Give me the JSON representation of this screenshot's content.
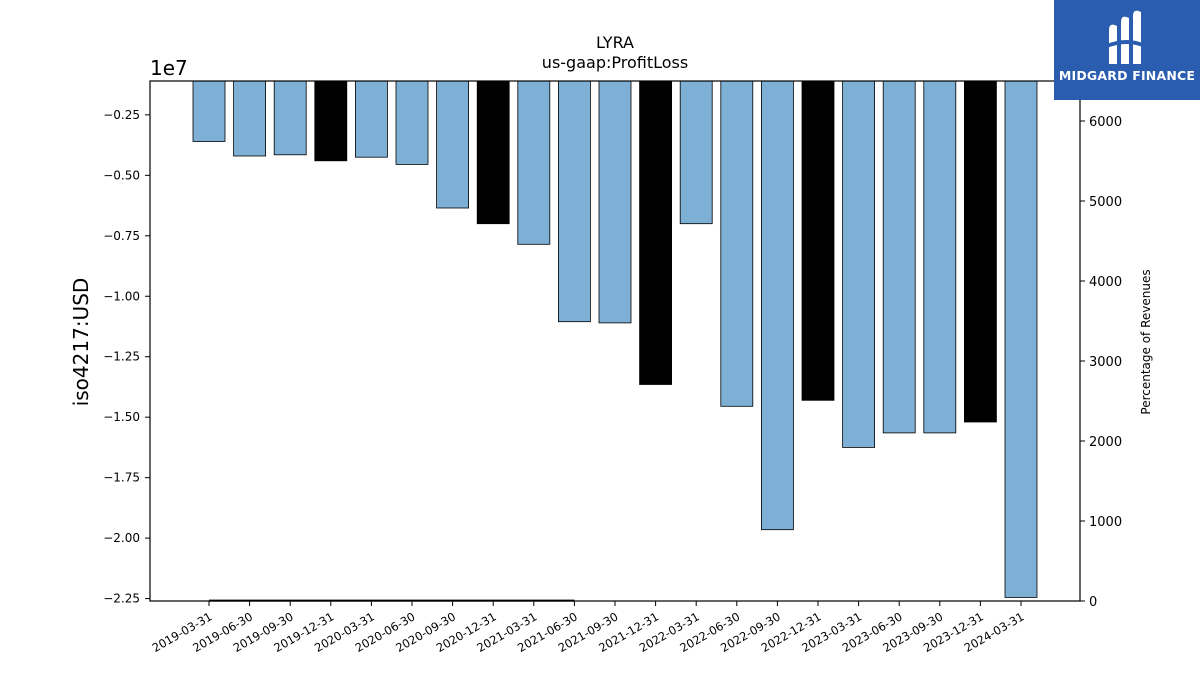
{
  "chart_data": {
    "type": "bar",
    "title": "LYRA",
    "subtitle": "us-gaap:ProfitLoss",
    "ylabel": "iso4217:USD",
    "y_offset_label": "1e7",
    "y2label": "Percentage of Revenues",
    "ylim": [
      -2.26,
      -0.11
    ],
    "y2lim": [
      0,
      6500
    ],
    "yticks": [
      "−0.25",
      "−0.50",
      "−0.75",
      "−1.00",
      "−1.25",
      "−1.50",
      "−1.75",
      "−2.00",
      "−2.25"
    ],
    "ytick_values": [
      -0.25,
      -0.5,
      -0.75,
      -1.0,
      -1.25,
      -1.5,
      -1.75,
      -2.0,
      -2.25
    ],
    "y2ticks": [
      "0",
      "1000",
      "2000",
      "3000",
      "4000",
      "5000",
      "6000"
    ],
    "y2tick_values": [
      0,
      1000,
      2000,
      3000,
      4000,
      5000,
      6000
    ],
    "categories": [
      "2019-03-31",
      "2019-06-30",
      "2019-09-30",
      "2019-12-31",
      "2020-03-31",
      "2020-06-30",
      "2020-09-30",
      "2020-12-31",
      "2021-03-31",
      "2021-06-30",
      "2021-09-30",
      "2021-12-31",
      "2022-03-31",
      "2022-06-30",
      "2022-09-30",
      "2022-12-31",
      "2023-03-31",
      "2023-06-30",
      "2023-09-30",
      "2023-12-31",
      "2024-03-31"
    ],
    "values": [
      -0.36,
      -0.42,
      -0.415,
      -0.44,
      -0.425,
      -0.455,
      -0.635,
      -0.7,
      -0.785,
      -1.105,
      -1.11,
      -1.365,
      -0.7,
      -1.455,
      -1.965,
      -1.43,
      -1.625,
      -1.565,
      -1.565,
      -1.52,
      -2.245
    ],
    "bar_colors": [
      "#7eb0d5",
      "#7eb0d5",
      "#7eb0d5",
      "#000000",
      "#7eb0d5",
      "#7eb0d5",
      "#7eb0d5",
      "#000000",
      "#7eb0d5",
      "#7eb0d5",
      "#7eb0d5",
      "#000000",
      "#7eb0d5",
      "#7eb0d5",
      "#7eb0d5",
      "#000000",
      "#7eb0d5",
      "#7eb0d5",
      "#7eb0d5",
      "#000000",
      "#7eb0d5"
    ],
    "percentage_line": {
      "x_start": "2019-03-31",
      "x_end": "2021-06-30",
      "y2_value": 5,
      "color": "#000000"
    }
  },
  "logo": {
    "text": "MIDGARD FINANCE"
  }
}
